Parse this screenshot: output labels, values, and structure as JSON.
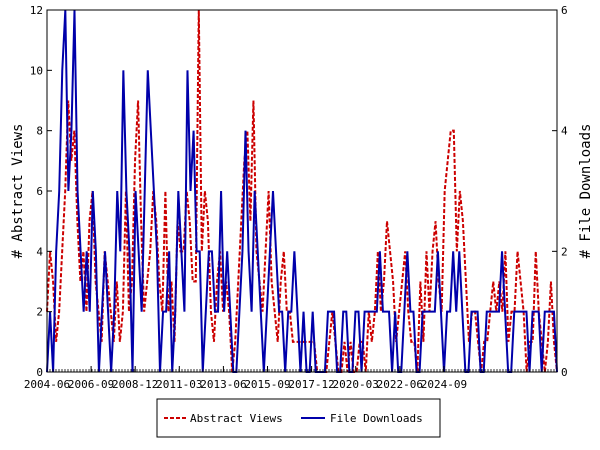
{
  "chart_data": {
    "type": "line",
    "xlabel": "",
    "ylabel_left": "# Abstract Views",
    "ylabel_right": "# File Downloads",
    "x_ticks": [
      "2004-06",
      "2006-09",
      "2008-12",
      "2011-03",
      "2013-06",
      "2015-09",
      "2017-12",
      "2020-03",
      "2022-06",
      "2024-09"
    ],
    "y_left_ticks": [
      "0",
      "2",
      "4",
      "6",
      "8",
      "10",
      "12"
    ],
    "y_right_ticks": [
      "0",
      "2",
      "4",
      "6"
    ],
    "ylim_left": [
      0,
      12
    ],
    "ylim_right": [
      0,
      6
    ],
    "x_start": "2004-06",
    "legend_position": "bottom-center",
    "series": [
      {
        "name": "Abstract Views",
        "axis": "left",
        "color": "#cc0000",
        "style": "dashed",
        "values": [
          2,
          4,
          3,
          1,
          2,
          4,
          6,
          9,
          7,
          8,
          5,
          3,
          4,
          2,
          5,
          6,
          3,
          2,
          1,
          4,
          3,
          2,
          1,
          3,
          1,
          2,
          6,
          2,
          3,
          7,
          9,
          5,
          2,
          3,
          4,
          6,
          5,
          3,
          2,
          6,
          2,
          3,
          1,
          5,
          4,
          4,
          6,
          5,
          3,
          3,
          12,
          4,
          6,
          5,
          2,
          1,
          3,
          4,
          2,
          3,
          2,
          0,
          1,
          3,
          5,
          7,
          8,
          5,
          9,
          4,
          3,
          2,
          4,
          6,
          3,
          2,
          1,
          3,
          4,
          2,
          2,
          1,
          1,
          1,
          1,
          1,
          1,
          1,
          1,
          0,
          0,
          0,
          0,
          1,
          2,
          1,
          0,
          0,
          1,
          0,
          1,
          0,
          0,
          1,
          1,
          0,
          2,
          1,
          2,
          4,
          2,
          3,
          5,
          4,
          3,
          1,
          2,
          3,
          4,
          2,
          1,
          1,
          0,
          3,
          1,
          4,
          2,
          4,
          5,
          3,
          2,
          6,
          7,
          8,
          8,
          4,
          6,
          5,
          3,
          1,
          2,
          2,
          1,
          0,
          1,
          1,
          2,
          3,
          2,
          3,
          2,
          4,
          1,
          2,
          2,
          4,
          3,
          2,
          0,
          1,
          1,
          4,
          2,
          1,
          0,
          1,
          3,
          1,
          0
        ]
      },
      {
        "name": "File Downloads",
        "axis": "right",
        "color": "#0000aa",
        "style": "solid",
        "values": [
          0,
          1,
          0,
          2,
          3,
          5,
          6,
          3,
          4,
          6,
          3,
          2,
          1,
          2,
          1,
          3,
          2,
          0,
          1,
          2,
          1,
          0,
          1,
          3,
          2,
          5,
          3,
          2,
          0,
          3,
          2,
          1,
          3,
          5,
          4,
          3,
          2,
          0,
          1,
          1,
          2,
          0,
          1,
          3,
          2,
          1,
          5,
          3,
          4,
          2,
          2,
          0,
          1,
          2,
          2,
          1,
          1,
          3,
          1,
          2,
          1,
          0,
          0,
          1,
          2,
          4,
          2,
          1,
          3,
          2,
          1,
          0,
          1,
          2,
          3,
          2,
          1,
          1,
          0,
          1,
          1,
          2,
          1,
          0,
          1,
          0,
          0,
          1,
          0,
          0,
          0,
          0,
          1,
          1,
          1,
          0,
          0,
          1,
          1,
          0,
          0,
          1,
          1,
          0,
          1,
          1,
          1,
          1,
          1,
          2,
          1,
          1,
          1,
          0,
          1,
          0,
          0,
          1,
          2,
          1,
          1,
          0,
          0,
          1,
          1,
          1,
          1,
          1,
          2,
          1,
          0,
          1,
          1,
          2,
          1,
          2,
          1,
          0,
          0,
          1,
          1,
          1,
          0,
          0,
          1,
          1,
          1,
          1,
          1,
          2,
          1,
          0,
          0,
          1,
          1,
          1,
          1,
          1,
          0,
          1,
          1,
          1,
          0,
          1,
          1,
          1,
          1,
          0
        ]
      }
    ]
  }
}
